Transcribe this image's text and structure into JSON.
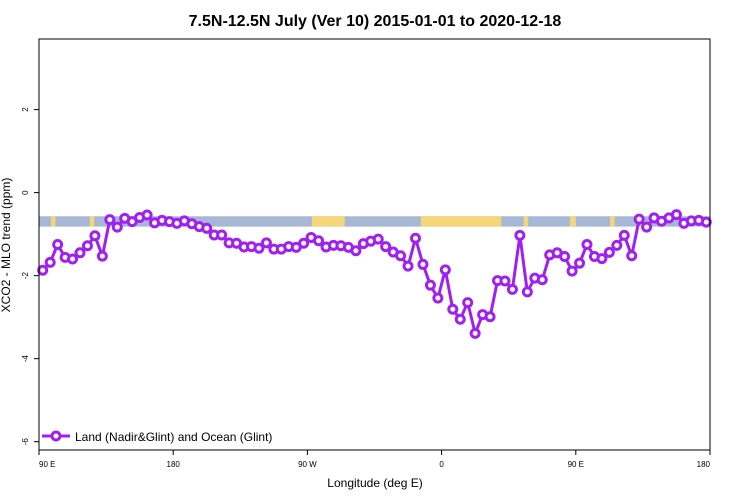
{
  "chart_data": {
    "type": "line",
    "title": "7.5N-12.5N July (Ver 10)   2015-01-01 to 2020-12-18",
    "xlabel": "Longitude (deg E)",
    "ylabel": "XCO2 - MLO trend (ppm)",
    "x_ticks": [
      {
        "value": 90,
        "label": "90 E"
      },
      {
        "value": 180,
        "label": "180"
      },
      {
        "value": 270,
        "label": "90 W"
      },
      {
        "value": 360,
        "label": "0"
      },
      {
        "value": 450,
        "label": "90 E"
      },
      {
        "value": 540,
        "label": "180"
      }
    ],
    "y_ticks": [
      2,
      0,
      -2,
      -4,
      -6
    ],
    "xlim": [
      90,
      540
    ],
    "ylim": [
      -6.2,
      3.7
    ],
    "grid": false,
    "legend_position": "bottom-left",
    "colors": {
      "series": "#a020f0",
      "ocean": "#a7b8d6",
      "land": "#f5d77a"
    },
    "land_ocean_band": {
      "y_top": -0.57,
      "y_bottom": -0.82,
      "land_segments": [
        [
          98,
          101
        ],
        [
          124,
          127
        ],
        [
          273,
          276
        ],
        [
          275,
          295
        ],
        [
          346,
          400
        ],
        [
          415,
          418
        ],
        [
          446,
          450
        ],
        [
          473,
          476
        ],
        [
          493,
          496
        ]
      ]
    },
    "series": [
      {
        "name": "Land (Nadir&Glint) and Ocean (Glint)",
        "x": [
          92.5,
          97.5,
          102.5,
          107.5,
          112.5,
          117.5,
          122.5,
          127.5,
          132.5,
          137.5,
          142.5,
          147.5,
          152.5,
          157.5,
          162.5,
          167.5,
          172.5,
          177.5,
          182.5,
          187.5,
          192.5,
          197.5,
          202.5,
          207.5,
          212.5,
          217.5,
          222.5,
          227.5,
          232.5,
          237.5,
          242.5,
          247.5,
          252.5,
          257.5,
          262.5,
          267.5,
          272.5,
          277.5,
          282.5,
          287.5,
          292.5,
          297.5,
          302.5,
          307.5,
          312.5,
          317.5,
          322.5,
          327.5,
          332.5,
          337.5,
          342.5,
          347.5,
          352.5,
          357.5,
          362.5,
          367.5,
          372.5,
          377.5,
          382.5,
          387.5,
          392.5,
          397.5,
          402.5,
          407.5,
          412.5,
          417.5,
          422.5,
          427.5,
          432.5,
          437.5,
          442.5,
          447.5,
          452.5,
          457.5,
          462.5,
          467.5,
          472.5,
          477.5,
          482.5,
          487.5,
          492.5,
          497.5,
          502.5,
          507.5,
          512.5,
          517.5,
          522.5,
          527.5,
          532.5,
          537.5
        ],
        "values": [
          -1.87,
          -1.68,
          -1.25,
          -1.56,
          -1.6,
          -1.45,
          -1.28,
          -1.04,
          -1.53,
          -0.65,
          -0.83,
          -0.62,
          -0.7,
          -0.6,
          -0.54,
          -0.73,
          -0.67,
          -0.7,
          -0.74,
          -0.68,
          -0.75,
          -0.82,
          -0.86,
          -1.02,
          -1.02,
          -1.21,
          -1.22,
          -1.31,
          -1.3,
          -1.34,
          -1.21,
          -1.36,
          -1.36,
          -1.3,
          -1.32,
          -1.22,
          -1.08,
          -1.16,
          -1.31,
          -1.27,
          -1.28,
          -1.32,
          -1.4,
          -1.23,
          -1.17,
          -1.12,
          -1.3,
          -1.43,
          -1.52,
          -1.77,
          -1.1,
          -1.73,
          -2.23,
          -2.54,
          -1.86,
          -2.81,
          -3.05,
          -2.65,
          -3.39,
          -2.94,
          -2.99,
          -2.12,
          -2.13,
          -2.33,
          -1.03,
          -2.39,
          -2.06,
          -2.1,
          -1.5,
          -1.45,
          -1.54,
          -1.89,
          -1.7,
          -1.25,
          -1.54,
          -1.59,
          -1.44,
          -1.27,
          -1.03,
          -1.52,
          -0.64,
          -0.83,
          -0.61,
          -0.69,
          -0.61,
          -0.53,
          -0.74,
          -0.68,
          -0.67,
          -0.71
        ]
      }
    ]
  }
}
